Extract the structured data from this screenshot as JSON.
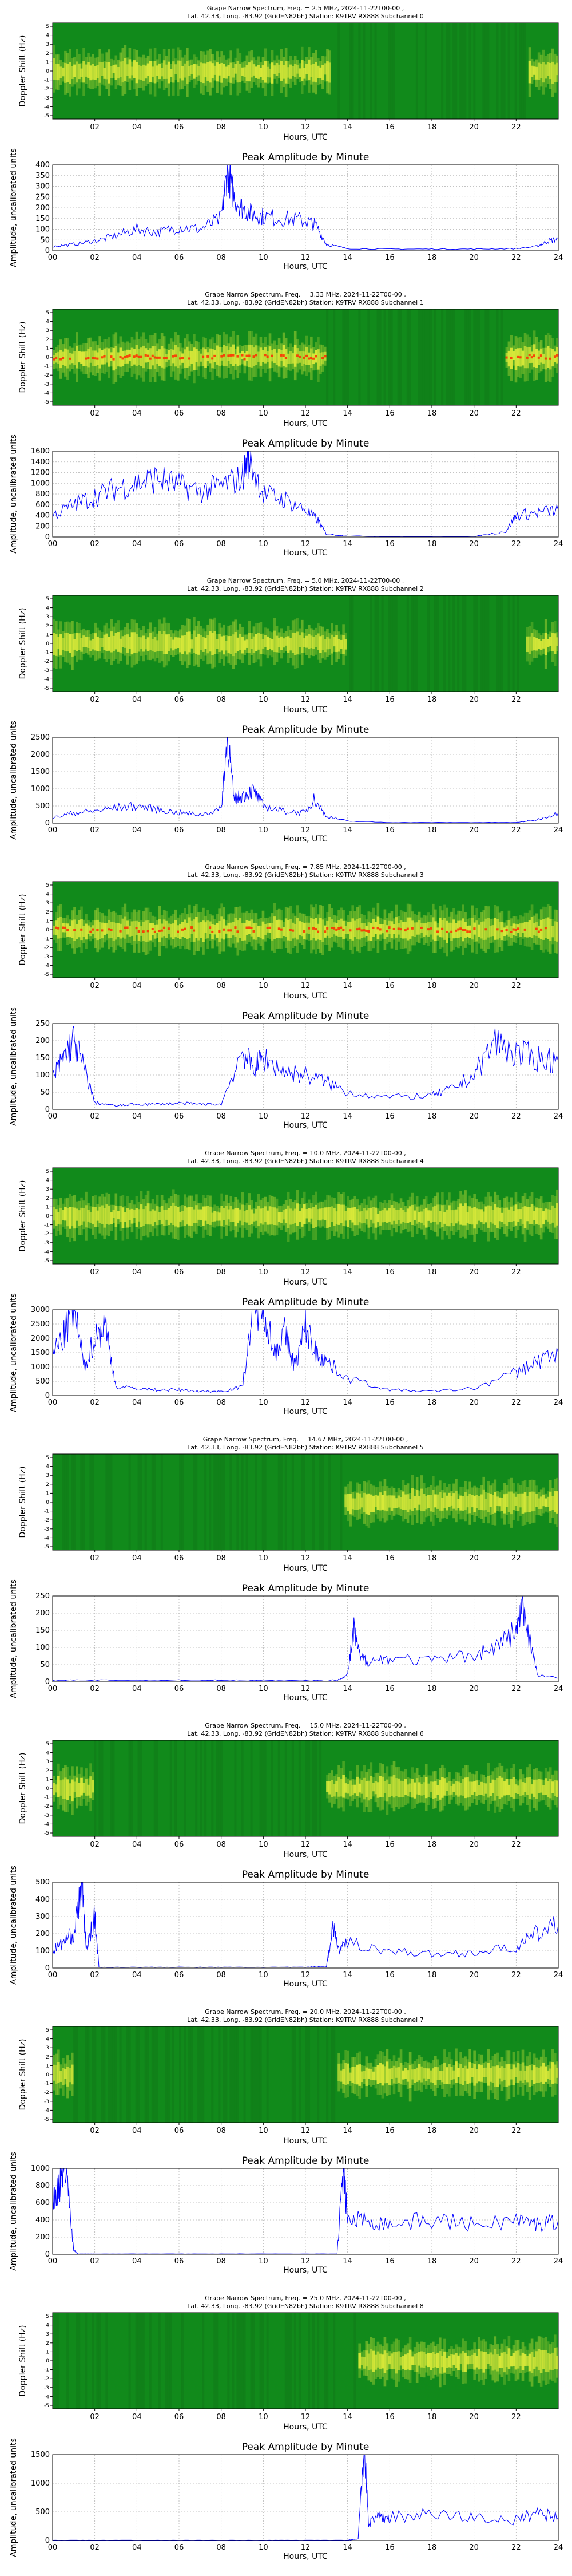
{
  "spectrogram_title_line2": "Lat.  42.33, Long. -83.92 (GridEN82bh) Station: K9TRV RX888 Subchannel",
  "peak_title": "Peak Amplitude by Minute",
  "xlabel": "Hours, UTC",
  "spectrogram_ylabel": "Doppler Shift (Hz)",
  "peak_ylabel": "Amplitude, uncalibrated units",
  "spectrogram_xticks": [
    "02",
    "04",
    "06",
    "08",
    "10",
    "12",
    "14",
    "16",
    "18",
    "20",
    "22"
  ],
  "spectrogram_yticks": [
    "-5",
    "-4",
    "-3",
    "-2",
    "-1",
    "0",
    "1",
    "2",
    "3",
    "4",
    "5"
  ],
  "peak_xticks": [
    "00",
    "02",
    "04",
    "06",
    "08",
    "10",
    "12",
    "14",
    "16",
    "18",
    "20",
    "22",
    "24"
  ],
  "colors": {
    "line": "#0000ff",
    "spectrogram_low": "#118a1b",
    "spectrogram_mid": "#e8f03a",
    "spectrogram_high": "#ff2a00",
    "grid": "#b0b0b0"
  },
  "channels": [
    {
      "subchannel": "0",
      "title_line1": "Grape Narrow Spectrum, Freq. = 2.5 MHz, 2024-11-22T00-00 ,"
    },
    {
      "subchannel": "1",
      "title_line1": "Grape Narrow Spectrum, Freq. = 3.33 MHz, 2024-11-22T00-00 ,"
    },
    {
      "subchannel": "2",
      "title_line1": "Grape Narrow Spectrum, Freq. = 5.0 MHz, 2024-11-22T00-00 ,"
    },
    {
      "subchannel": "3",
      "title_line1": "Grape Narrow Spectrum, Freq. = 7.85 MHz, 2024-11-22T00-00 ,"
    },
    {
      "subchannel": "4",
      "title_line1": "Grape Narrow Spectrum, Freq. = 10.0 MHz, 2024-11-22T00-00 ,"
    },
    {
      "subchannel": "5",
      "title_line1": "Grape Narrow Spectrum, Freq. = 14.67 MHz, 2024-11-22T00-00 ,"
    },
    {
      "subchannel": "6",
      "title_line1": "Grape Narrow Spectrum, Freq. = 15.0 MHz, 2024-11-22T00-00 ,"
    },
    {
      "subchannel": "7",
      "title_line1": "Grape Narrow Spectrum, Freq. = 20.0 MHz, 2024-11-22T00-00 ,"
    },
    {
      "subchannel": "8",
      "title_line1": "Grape Narrow Spectrum, Freq. = 25.0 MHz, 2024-11-22T00-00 ,"
    }
  ],
  "chart_data": [
    {
      "type": "heatmap",
      "subchannel": "0",
      "xlim": [
        0,
        24
      ],
      "ylim": [
        -5,
        5
      ],
      "active_ranges": [
        [
          0,
          13.2
        ],
        [
          22.6,
          24
        ]
      ],
      "dominant": "mid"
    },
    {
      "type": "line",
      "subchannel": "0",
      "ylim": [
        0,
        400
      ],
      "yticks": [
        0,
        50,
        100,
        150,
        200,
        250,
        300,
        350,
        400
      ],
      "x": [
        0,
        1,
        2,
        3,
        4,
        5,
        6,
        7,
        8,
        8.3,
        8.6,
        9,
        9.5,
        10,
        11,
        12,
        12.5,
        13,
        14,
        16,
        18,
        20,
        22,
        23,
        23.5,
        24
      ],
      "values": [
        20,
        30,
        45,
        70,
        100,
        85,
        110,
        100,
        150,
        380,
        250,
        200,
        170,
        160,
        150,
        140,
        120,
        30,
        10,
        8,
        8,
        8,
        10,
        20,
        45,
        55
      ]
    },
    {
      "type": "heatmap",
      "subchannel": "1",
      "xlim": [
        0,
        24
      ],
      "ylim": [
        -5,
        5
      ],
      "active_ranges": [
        [
          0,
          13
        ],
        [
          21.5,
          24
        ]
      ],
      "dominant": "high"
    },
    {
      "type": "line",
      "subchannel": "1",
      "ylim": [
        0,
        1600
      ],
      "yticks": [
        0,
        200,
        400,
        600,
        800,
        1000,
        1200,
        1400,
        1600
      ],
      "x": [
        0,
        1,
        2,
        3,
        4,
        5,
        6,
        7,
        8,
        9,
        9.3,
        10,
        11,
        12,
        12.6,
        13,
        14,
        16,
        18,
        20,
        21.5,
        22,
        23,
        24
      ],
      "values": [
        400,
        600,
        750,
        900,
        1000,
        1100,
        950,
        850,
        950,
        1100,
        1500,
        800,
        700,
        500,
        300,
        50,
        20,
        10,
        10,
        10,
        100,
        400,
        450,
        500
      ]
    },
    {
      "type": "heatmap",
      "subchannel": "2",
      "xlim": [
        0,
        24
      ],
      "ylim": [
        -5,
        5
      ],
      "active_ranges": [
        [
          0,
          14
        ],
        [
          22.5,
          24
        ]
      ],
      "dominant": "mid"
    },
    {
      "type": "line",
      "subchannel": "2",
      "ylim": [
        0,
        2500
      ],
      "yticks": [
        0,
        500,
        1000,
        1500,
        2000,
        2500
      ],
      "x": [
        0,
        1,
        2,
        3,
        4,
        5,
        6,
        7,
        8,
        8.3,
        8.6,
        9,
        9.5,
        10,
        11,
        12,
        12.4,
        13,
        14,
        16,
        18,
        20,
        22,
        23,
        24
      ],
      "values": [
        150,
        300,
        350,
        450,
        500,
        400,
        300,
        250,
        400,
        2600,
        700,
        800,
        950,
        500,
        350,
        300,
        700,
        200,
        60,
        20,
        20,
        20,
        20,
        100,
        300
      ]
    },
    {
      "type": "heatmap",
      "subchannel": "3",
      "xlim": [
        0,
        24
      ],
      "ylim": [
        -5,
        5
      ],
      "active_ranges": [
        [
          0,
          24
        ]
      ],
      "dominant": "high"
    },
    {
      "type": "line",
      "subchannel": "3",
      "ylim": [
        0,
        250
      ],
      "yticks": [
        0,
        50,
        100,
        150,
        200,
        250
      ],
      "x": [
        0,
        0.5,
        1,
        1.5,
        2,
        3,
        4,
        5,
        6,
        7,
        8,
        9,
        9.5,
        10,
        11,
        12,
        13,
        14,
        16,
        18,
        19,
        20,
        21,
        22,
        23,
        24
      ],
      "values": [
        90,
        150,
        200,
        120,
        20,
        10,
        15,
        15,
        18,
        15,
        15,
        170,
        120,
        150,
        110,
        100,
        80,
        50,
        35,
        40,
        60,
        100,
        200,
        160,
        150,
        140
      ]
    },
    {
      "type": "heatmap",
      "subchannel": "4",
      "xlim": [
        0,
        24
      ],
      "ylim": [
        -5,
        5
      ],
      "active_ranges": [
        [
          0,
          24
        ]
      ],
      "dominant": "mid"
    },
    {
      "type": "line",
      "subchannel": "4",
      "ylim": [
        0,
        3000
      ],
      "yticks": [
        0,
        500,
        1000,
        1500,
        2000,
        2500,
        3000
      ],
      "x": [
        0,
        0.5,
        1,
        1.5,
        2,
        2.5,
        3,
        4,
        5,
        6,
        7,
        8,
        9,
        9.5,
        10,
        10.5,
        11,
        11.5,
        12,
        12.5,
        13,
        14,
        16,
        18,
        20,
        22,
        23,
        24
      ],
      "values": [
        1500,
        2000,
        3100,
        1000,
        2000,
        2500,
        300,
        250,
        200,
        200,
        150,
        150,
        300,
        2900,
        3300,
        1500,
        2200,
        1000,
        2400,
        1500,
        1200,
        600,
        200,
        150,
        250,
        800,
        1200,
        1500
      ]
    },
    {
      "type": "heatmap",
      "subchannel": "5",
      "xlim": [
        0,
        24
      ],
      "ylim": [
        -5,
        5
      ],
      "active_ranges": [
        [
          13.8,
          24
        ]
      ],
      "dominant": "mid"
    },
    {
      "type": "line",
      "subchannel": "5",
      "ylim": [
        0,
        250
      ],
      "yticks": [
        0,
        50,
        100,
        150,
        200,
        250
      ],
      "x": [
        0,
        2,
        4,
        6,
        8,
        10,
        12,
        13.5,
        14,
        14.3,
        14.6,
        15,
        16,
        18,
        20,
        21,
        22,
        22.3,
        22.6,
        23,
        24
      ],
      "values": [
        5,
        5,
        5,
        5,
        5,
        5,
        5,
        5,
        20,
        150,
        70,
        60,
        70,
        60,
        80,
        100,
        150,
        220,
        140,
        20,
        10
      ]
    },
    {
      "type": "heatmap",
      "subchannel": "6",
      "xlim": [
        0,
        24
      ],
      "ylim": [
        -5,
        5
      ],
      "active_ranges": [
        [
          0,
          2
        ],
        [
          13,
          24
        ]
      ],
      "dominant": "mid"
    },
    {
      "type": "line",
      "subchannel": "6",
      "ylim": [
        0,
        500
      ],
      "yticks": [
        0,
        100,
        200,
        300,
        400,
        500
      ],
      "x": [
        0,
        0.5,
        1,
        1.4,
        1.6,
        2,
        2.2,
        4,
        6,
        8,
        10,
        12,
        13,
        13.3,
        13.6,
        14,
        16,
        18,
        20,
        22,
        23,
        24
      ],
      "values": [
        100,
        150,
        200,
        500,
        100,
        300,
        5,
        5,
        5,
        5,
        5,
        5,
        10,
        250,
        100,
        150,
        100,
        80,
        90,
        120,
        200,
        250
      ]
    },
    {
      "type": "heatmap",
      "subchannel": "7",
      "xlim": [
        0,
        24
      ],
      "ylim": [
        -5,
        5
      ],
      "active_ranges": [
        [
          0,
          1
        ],
        [
          13.5,
          24
        ]
      ],
      "dominant": "mid"
    },
    {
      "type": "line",
      "subchannel": "7",
      "ylim": [
        0,
        1000
      ],
      "yticks": [
        0,
        200,
        400,
        600,
        800,
        1000
      ],
      "x": [
        0,
        0.3,
        0.6,
        1,
        1.2,
        2,
        4,
        6,
        8,
        10,
        12,
        13.5,
        13.8,
        14,
        15,
        16,
        18,
        20,
        22,
        23,
        24
      ],
      "values": [
        600,
        800,
        1100,
        50,
        5,
        5,
        5,
        5,
        5,
        5,
        5,
        5,
        1000,
        400,
        400,
        350,
        400,
        350,
        400,
        350,
        400
      ]
    },
    {
      "type": "heatmap",
      "subchannel": "8",
      "xlim": [
        0,
        24
      ],
      "ylim": [
        -5,
        5
      ],
      "active_ranges": [
        [
          14.5,
          24
        ]
      ],
      "dominant": "mid"
    },
    {
      "type": "line",
      "subchannel": "8",
      "ylim": [
        0,
        1500
      ],
      "yticks": [
        0,
        500,
        1000,
        1500
      ],
      "x": [
        0,
        2,
        4,
        6,
        8,
        10,
        12,
        14,
        14.5,
        14.8,
        15,
        15.5,
        16,
        18,
        20,
        22,
        23,
        24
      ],
      "values": [
        5,
        5,
        5,
        5,
        5,
        5,
        5,
        5,
        30,
        1700,
        300,
        400,
        400,
        450,
        400,
        350,
        500,
        400
      ]
    }
  ]
}
